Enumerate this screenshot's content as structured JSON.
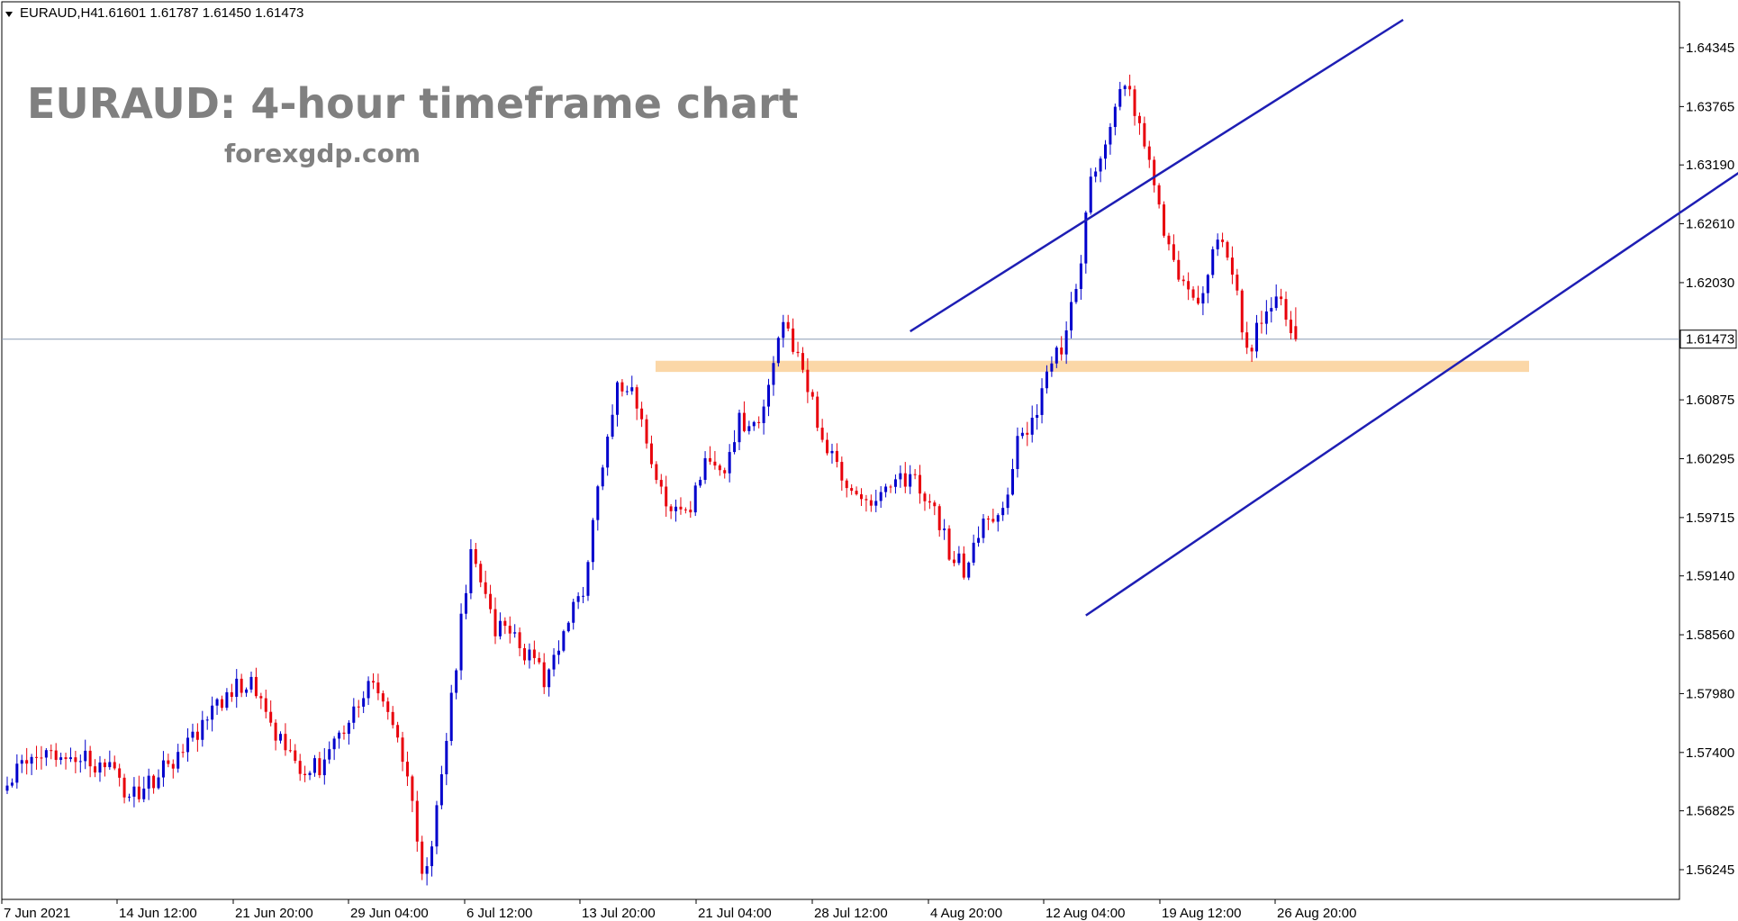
{
  "header": {
    "symbol": "EURAUD,H4",
    "ohlc": "1.61601 1.61787 1.61450 1.61473"
  },
  "annotation": {
    "title": "EURAUD: 4-hour timeframe chart",
    "subtitle": "forexgdp.com"
  },
  "colors": {
    "bull": "#0000cc",
    "bear": "#e8000b",
    "trendline": "#1e1eb4",
    "zone": "#fbd7a7",
    "price_line": "#8a9ab4"
  },
  "chart_data": {
    "type": "candlestick",
    "title": "EURAUD: 4-hour timeframe chart",
    "subtitle": "forexgdp.com",
    "symbol": "EURAUD",
    "timeframe": "H4",
    "ylim": [
      1.5585,
      1.6455
    ],
    "y_ticks": [
      "1.64345",
      "1.63765",
      "1.63190",
      "1.62610",
      "1.62030",
      "1.61473",
      "1.60875",
      "1.60295",
      "1.59715",
      "1.59140",
      "1.58560",
      "1.57980",
      "1.57400",
      "1.56825",
      "1.56245"
    ],
    "x_tick_labels": [
      "7 Jun 2021",
      "14 Jun 12:00",
      "21 Jun 20:00",
      "29 Jun 04:00",
      "6 Jul 12:00",
      "13 Jul 20:00",
      "21 Jul 04:00",
      "28 Jul 12:00",
      "4 Aug 20:00",
      "12 Aug 04:00",
      "19 Aug 12:00",
      "26 Aug 20:00"
    ],
    "current_price": 1.61473,
    "last_bar": {
      "open": 1.61601,
      "high": 1.61787,
      "low": 1.6145,
      "close": 1.61473
    },
    "price_path_anchors": [
      [
        0,
        1.5718
      ],
      [
        10,
        1.5735
      ],
      [
        20,
        1.573
      ],
      [
        25,
        1.5695
      ],
      [
        30,
        1.5715
      ],
      [
        40,
        1.5765
      ],
      [
        45,
        1.58
      ],
      [
        50,
        1.5805
      ],
      [
        55,
        1.5755
      ],
      [
        60,
        1.572
      ],
      [
        65,
        1.573
      ],
      [
        70,
        1.5778
      ],
      [
        75,
        1.5808
      ],
      [
        78,
        1.5788
      ],
      [
        82,
        1.5715
      ],
      [
        85,
        1.5615
      ],
      [
        87,
        1.5645
      ],
      [
        90,
        1.5755
      ],
      [
        95,
        1.5945
      ],
      [
        100,
        1.5865
      ],
      [
        105,
        1.5845
      ],
      [
        108,
        1.5828
      ],
      [
        110,
        1.5815
      ],
      [
        115,
        1.5875
      ],
      [
        118,
        1.5895
      ],
      [
        122,
        1.6025
      ],
      [
        125,
        1.6112
      ],
      [
        130,
        1.6075
      ],
      [
        135,
        1.5975
      ],
      [
        140,
        1.598
      ],
      [
        143,
        1.6035
      ],
      [
        147,
        1.6025
      ],
      [
        150,
        1.607
      ],
      [
        153,
        1.6055
      ],
      [
        156,
        1.6095
      ],
      [
        159,
        1.6165
      ],
      [
        162,
        1.6135
      ],
      [
        165,
        1.6085
      ],
      [
        168,
        1.6035
      ],
      [
        171,
        1.6015
      ],
      [
        175,
        1.5985
      ],
      [
        180,
        1.6005
      ],
      [
        185,
        1.601
      ],
      [
        190,
        1.5985
      ],
      [
        193,
        1.594
      ],
      [
        196,
        1.592
      ],
      [
        198,
        1.5955
      ],
      [
        202,
        1.597
      ],
      [
        205,
        1.5998
      ],
      [
        207,
        1.6055
      ],
      [
        210,
        1.6065
      ],
      [
        213,
        1.612
      ],
      [
        216,
        1.6135
      ],
      [
        219,
        1.6195
      ],
      [
        222,
        1.6305
      ],
      [
        225,
        1.6345
      ],
      [
        228,
        1.6395
      ],
      [
        230,
        1.6388
      ],
      [
        233,
        1.634
      ],
      [
        236,
        1.627
      ],
      [
        240,
        1.6205
      ],
      [
        243,
        1.618
      ],
      [
        246,
        1.6215
      ],
      [
        249,
        1.6245
      ],
      [
        252,
        1.6195
      ],
      [
        254,
        1.6128
      ],
      [
        256,
        1.6155
      ],
      [
        259,
        1.618
      ],
      [
        262,
        1.6175
      ],
      [
        264,
        1.61473
      ]
    ],
    "bar_count": 265,
    "annotations": [
      {
        "type": "support_resistance_zone",
        "price_low": 1.6115,
        "price_high": 1.6126
      },
      {
        "type": "upper_channel_line",
        "from": {
          "bar": 185,
          "price": 1.6155
        },
        "to": {
          "bar": 286,
          "price": 1.6462
        }
      },
      {
        "type": "lower_channel_line",
        "from": {
          "bar": 221,
          "price": 1.5875
        },
        "to": {
          "bar": 374,
          "price": 1.6374
        }
      },
      {
        "type": "horizontal_price_line",
        "price": 1.61473
      }
    ]
  }
}
